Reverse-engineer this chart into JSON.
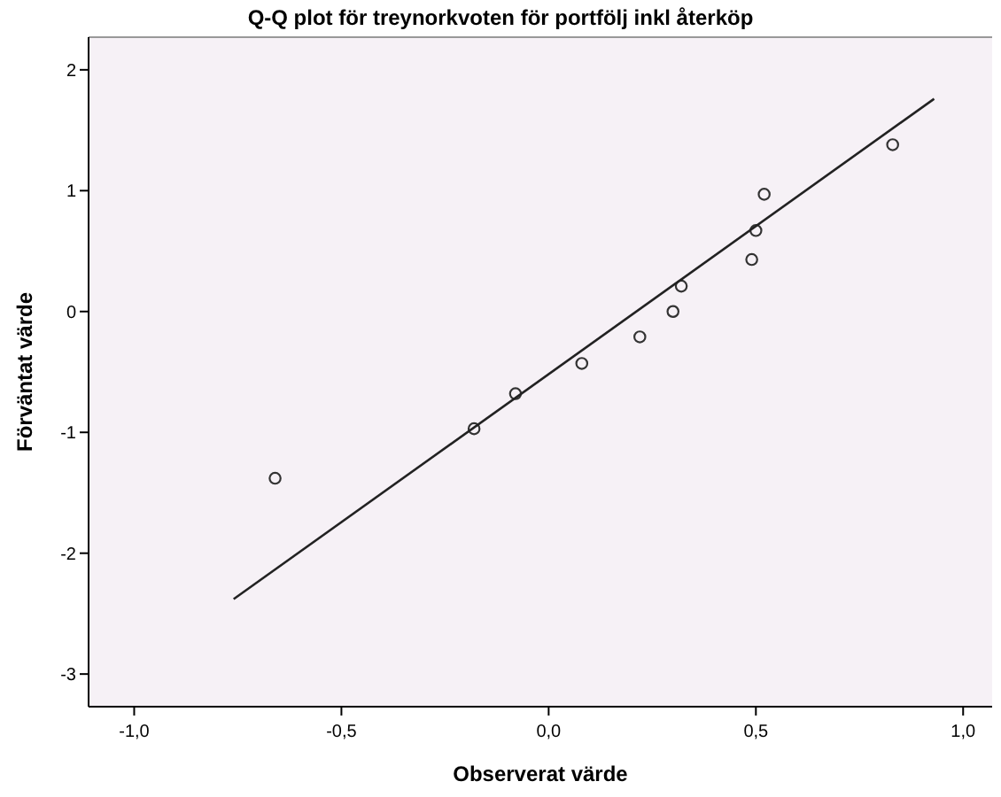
{
  "chart_data": {
    "type": "scatter",
    "title": "Q-Q plot för treynorkvoten för portfölj inkl återköp",
    "xlabel": "Observerat värde",
    "ylabel": "Förväntat värde",
    "xlim": [
      -1.11,
      1.07
    ],
    "ylim": [
      -3.27,
      2.27
    ],
    "xticks": [
      {
        "value": -1,
        "label": "-1,0"
      },
      {
        "value": -0.5,
        "label": "-0,5"
      },
      {
        "value": 0,
        "label": "0,0"
      },
      {
        "value": 0.5,
        "label": "0,5"
      },
      {
        "value": 1,
        "label": "1,0"
      }
    ],
    "yticks": [
      -3,
      -2,
      -1,
      0,
      1,
      2
    ],
    "marker": "circle",
    "grid": false,
    "series": [
      {
        "color": "#333333",
        "x": [
          -0.66,
          -0.18,
          -0.08,
          0.08,
          0.22,
          0.3,
          0.32,
          0.49,
          0.5,
          0.52,
          0.83
        ],
        "values": [
          -1.38,
          -0.97,
          -0.68,
          -0.43,
          -0.21,
          0,
          0.21,
          0.43,
          0.67,
          0.97,
          1.38
        ]
      },
      {
        "type": "line",
        "marker": "none",
        "color": "#222222",
        "x": [
          -0.76,
          0.93
        ],
        "values": [
          -2.38,
          1.76
        ]
      }
    ]
  }
}
